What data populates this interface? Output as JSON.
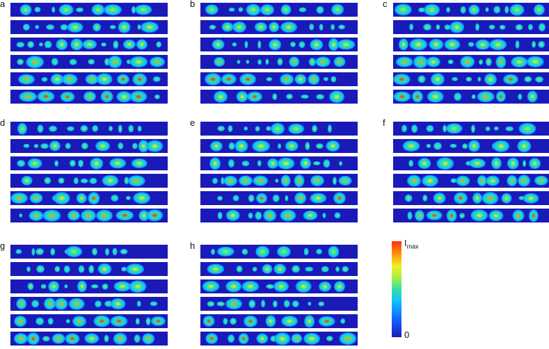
{
  "panels": [
    {
      "label": "a"
    },
    {
      "label": "b"
    },
    {
      "label": "c"
    },
    {
      "label": "d"
    },
    {
      "label": "e"
    },
    {
      "label": "f"
    },
    {
      "label": "g"
    },
    {
      "label": "h"
    }
  ],
  "strips_per_panel": 6,
  "colorbar": {
    "max_label": "I",
    "max_sub": "max",
    "min_label": "0",
    "colors": [
      "#1a1ab8",
      "#1560ff",
      "#12c2ff",
      "#32e0a0",
      "#a8f040",
      "#f0f020",
      "#ff9a10",
      "#ff2a10"
    ]
  }
}
